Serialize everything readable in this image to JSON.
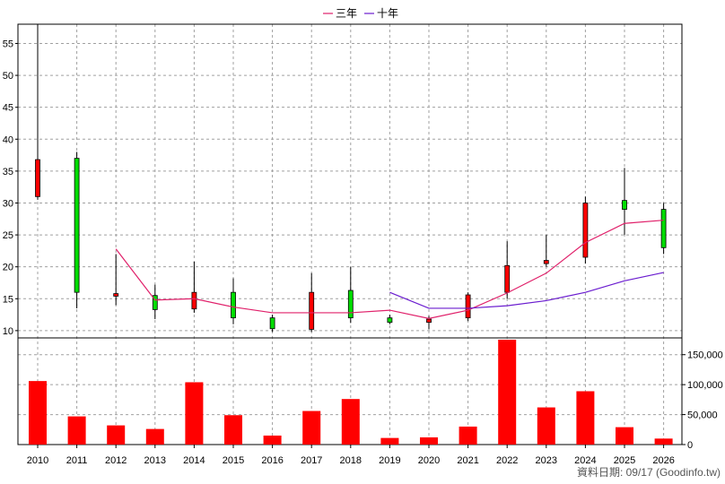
{
  "chart_data": {
    "type": "candlestick+line+bar",
    "legend": [
      {
        "name": "三年",
        "color": "#e0206a"
      },
      {
        "name": "十年",
        "color": "#6a1ccf"
      }
    ],
    "years": [
      "2010",
      "2011",
      "2012",
      "2013",
      "2014",
      "2015",
      "2016",
      "2017",
      "2018",
      "2019",
      "2020",
      "2021",
      "2022",
      "2023",
      "2024",
      "2025",
      "2026"
    ],
    "price_axis": {
      "ylim": [
        9,
        59
      ],
      "ticks": [
        10,
        15,
        20,
        25,
        30,
        35,
        40,
        45,
        50,
        55
      ]
    },
    "volume_axis": {
      "ylim": [
        0,
        175000
      ],
      "ticks": [
        0,
        50000,
        100000,
        150000
      ],
      "tick_labels": [
        "0",
        "50,000",
        "100,000",
        "150,000"
      ]
    },
    "candles": [
      {
        "year": "2010",
        "open": 31.0,
        "close": 36.8,
        "high": 58.0,
        "low": 30.5
      },
      {
        "year": "2011",
        "open": 37.0,
        "close": 16.0,
        "high": 38.0,
        "low": 13.5
      },
      {
        "year": "2012",
        "open": 15.4,
        "close": 15.8,
        "high": 22.0,
        "low": 14.0
      },
      {
        "year": "2013",
        "open": 15.5,
        "close": 13.3,
        "high": 17.2,
        "low": 11.8
      },
      {
        "year": "2014",
        "open": 13.4,
        "close": 16.0,
        "high": 20.8,
        "low": 12.8
      },
      {
        "year": "2015",
        "open": 16.0,
        "close": 12.0,
        "high": 18.2,
        "low": 11.0
      },
      {
        "year": "2016",
        "open": 12.0,
        "close": 10.3,
        "high": 12.5,
        "low": 9.8
      },
      {
        "year": "2017",
        "open": 10.2,
        "close": 16.0,
        "high": 19.0,
        "low": 9.8
      },
      {
        "year": "2018",
        "open": 16.3,
        "close": 12.0,
        "high": 20.0,
        "low": 11.2
      },
      {
        "year": "2019",
        "open": 12.0,
        "close": 11.3,
        "high": 12.5,
        "low": 11.0
      },
      {
        "year": "2020",
        "open": 11.3,
        "close": 11.8,
        "high": 12.3,
        "low": 10.2
      },
      {
        "year": "2021",
        "open": 12.0,
        "close": 15.6,
        "high": 16.0,
        "low": 11.5
      },
      {
        "year": "2022",
        "open": 16.0,
        "close": 20.2,
        "high": 24.0,
        "low": 15.0
      },
      {
        "year": "2023",
        "open": 20.5,
        "close": 21.0,
        "high": 25.0,
        "low": 20.0
      },
      {
        "year": "2024",
        "open": 21.5,
        "close": 30.0,
        "high": 31.0,
        "low": 20.5
      },
      {
        "year": "2025",
        "open": 30.4,
        "close": 29.0,
        "high": 35.5,
        "low": 25.0
      },
      {
        "year": "2026",
        "open": 29.0,
        "close": 23.0,
        "high": 30.0,
        "low": 22.0
      }
    ],
    "series": [
      {
        "name": "三年",
        "color": "#e0206a",
        "points": [
          {
            "year": "2012",
            "value": 22.8
          },
          {
            "year": "2013",
            "value": 14.8
          },
          {
            "year": "2014",
            "value": 15.0
          },
          {
            "year": "2015",
            "value": 13.7
          },
          {
            "year": "2016",
            "value": 12.8
          },
          {
            "year": "2017",
            "value": 12.8
          },
          {
            "year": "2018",
            "value": 12.8
          },
          {
            "year": "2019",
            "value": 13.2
          },
          {
            "year": "2020",
            "value": 11.9
          },
          {
            "year": "2021",
            "value": 13.2
          },
          {
            "year": "2022",
            "value": 15.9
          },
          {
            "year": "2023",
            "value": 19.0
          },
          {
            "year": "2024",
            "value": 23.8
          },
          {
            "year": "2025",
            "value": 26.8
          },
          {
            "year": "2026",
            "value": 27.3
          }
        ]
      },
      {
        "name": "十年",
        "color": "#6a1ccf",
        "points": [
          {
            "year": "2019",
            "value": 16.0
          },
          {
            "year": "2020",
            "value": 13.5
          },
          {
            "year": "2021",
            "value": 13.5
          },
          {
            "year": "2022",
            "value": 13.9
          },
          {
            "year": "2023",
            "value": 14.7
          },
          {
            "year": "2024",
            "value": 16.0
          },
          {
            "year": "2025",
            "value": 17.8
          },
          {
            "year": "2026",
            "value": 19.1
          }
        ]
      }
    ],
    "volume": [
      106000,
      47000,
      32000,
      26000,
      104000,
      49000,
      15000,
      56000,
      76000,
      11000,
      12000,
      30000,
      175000,
      62000,
      89000,
      29000,
      10000
    ],
    "colors": {
      "up": "#ff0000",
      "down": "#00dd00",
      "volume": "#ff0000",
      "grid": "#a0a0a0"
    },
    "footer": "資料日期: 09/17  (Goodinfo.tw)"
  }
}
